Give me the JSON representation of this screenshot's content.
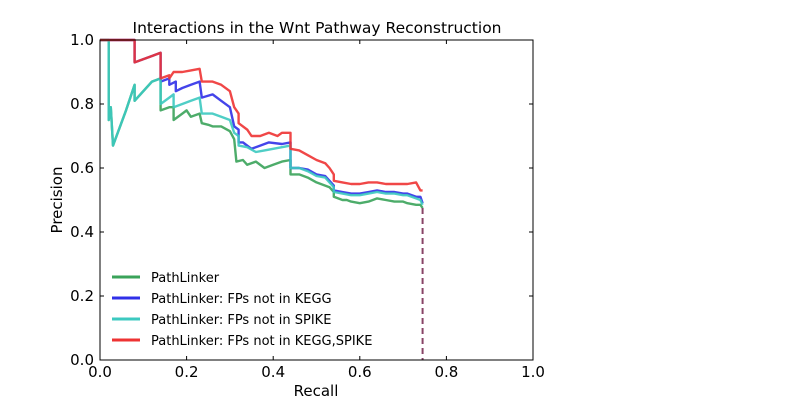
{
  "chart_data": {
    "type": "line",
    "title": "Interactions in the Wnt Pathway Reconstruction",
    "xlabel": "Recall",
    "ylabel": "Precision",
    "xlim": [
      0.0,
      1.0
    ],
    "ylim": [
      0.0,
      1.0
    ],
    "xticks": [
      "0.0",
      "0.2",
      "0.4",
      "0.6",
      "0.8",
      "1.0"
    ],
    "yticks": [
      "0.0",
      "0.2",
      "0.4",
      "0.6",
      "0.8",
      "1.0"
    ],
    "grid": false,
    "legend_position": "lower-left",
    "series": [
      {
        "name": "PathLinker",
        "color": "#3aa35a",
        "points": [
          [
            0.0,
            1.0
          ],
          [
            0.02,
            1.0
          ],
          [
            0.02,
            0.75
          ],
          [
            0.025,
            0.79
          ],
          [
            0.03,
            0.67
          ],
          [
            0.06,
            0.78
          ],
          [
            0.07,
            0.82
          ],
          [
            0.08,
            0.86
          ],
          [
            0.08,
            0.81
          ],
          [
            0.12,
            0.87
          ],
          [
            0.14,
            0.88
          ],
          [
            0.14,
            0.78
          ],
          [
            0.16,
            0.79
          ],
          [
            0.17,
            0.79
          ],
          [
            0.17,
            0.75
          ],
          [
            0.19,
            0.77
          ],
          [
            0.2,
            0.78
          ],
          [
            0.21,
            0.76
          ],
          [
            0.23,
            0.77
          ],
          [
            0.235,
            0.74
          ],
          [
            0.25,
            0.735
          ],
          [
            0.26,
            0.73
          ],
          [
            0.28,
            0.73
          ],
          [
            0.3,
            0.715
          ],
          [
            0.31,
            0.69
          ],
          [
            0.315,
            0.62
          ],
          [
            0.33,
            0.625
          ],
          [
            0.34,
            0.61
          ],
          [
            0.36,
            0.62
          ],
          [
            0.38,
            0.6
          ],
          [
            0.4,
            0.61
          ],
          [
            0.42,
            0.62
          ],
          [
            0.44,
            0.625
          ],
          [
            0.44,
            0.58
          ],
          [
            0.46,
            0.58
          ],
          [
            0.48,
            0.57
          ],
          [
            0.5,
            0.555
          ],
          [
            0.52,
            0.545
          ],
          [
            0.53,
            0.54
          ],
          [
            0.54,
            0.525
          ],
          [
            0.54,
            0.51
          ],
          [
            0.56,
            0.5
          ],
          [
            0.57,
            0.5
          ],
          [
            0.58,
            0.495
          ],
          [
            0.6,
            0.49
          ],
          [
            0.62,
            0.495
          ],
          [
            0.64,
            0.505
          ],
          [
            0.66,
            0.5
          ],
          [
            0.68,
            0.495
          ],
          [
            0.7,
            0.495
          ],
          [
            0.71,
            0.49
          ],
          [
            0.73,
            0.485
          ],
          [
            0.74,
            0.485
          ],
          [
            0.745,
            0.475
          ]
        ]
      },
      {
        "name": "PathLinker: FPs not in KEGG",
        "color": "#3030e8",
        "points": [
          [
            0.0,
            1.0
          ],
          [
            0.08,
            1.0
          ],
          [
            0.08,
            0.93
          ],
          [
            0.12,
            0.95
          ],
          [
            0.14,
            0.96
          ],
          [
            0.14,
            0.87
          ],
          [
            0.16,
            0.88
          ],
          [
            0.16,
            0.86
          ],
          [
            0.175,
            0.87
          ],
          [
            0.175,
            0.84
          ],
          [
            0.19,
            0.85
          ],
          [
            0.21,
            0.86
          ],
          [
            0.23,
            0.87
          ],
          [
            0.235,
            0.82
          ],
          [
            0.26,
            0.83
          ],
          [
            0.28,
            0.81
          ],
          [
            0.3,
            0.79
          ],
          [
            0.31,
            0.73
          ],
          [
            0.32,
            0.72
          ],
          [
            0.32,
            0.68
          ],
          [
            0.33,
            0.68
          ],
          [
            0.34,
            0.67
          ],
          [
            0.35,
            0.66
          ],
          [
            0.37,
            0.67
          ],
          [
            0.39,
            0.68
          ],
          [
            0.42,
            0.675
          ],
          [
            0.44,
            0.68
          ],
          [
            0.44,
            0.6
          ],
          [
            0.46,
            0.6
          ],
          [
            0.48,
            0.595
          ],
          [
            0.5,
            0.58
          ],
          [
            0.52,
            0.575
          ],
          [
            0.53,
            0.56
          ],
          [
            0.54,
            0.545
          ],
          [
            0.54,
            0.53
          ],
          [
            0.56,
            0.525
          ],
          [
            0.58,
            0.52
          ],
          [
            0.6,
            0.52
          ],
          [
            0.62,
            0.525
          ],
          [
            0.64,
            0.53
          ],
          [
            0.66,
            0.525
          ],
          [
            0.68,
            0.525
          ],
          [
            0.7,
            0.52
          ],
          [
            0.71,
            0.52
          ],
          [
            0.73,
            0.51
          ],
          [
            0.74,
            0.51
          ],
          [
            0.745,
            0.49
          ]
        ]
      },
      {
        "name": "PathLinker: FPs not in SPIKE",
        "color": "#3cc9c0",
        "points": [
          [
            0.0,
            1.0
          ],
          [
            0.02,
            1.0
          ],
          [
            0.02,
            0.75
          ],
          [
            0.025,
            0.79
          ],
          [
            0.03,
            0.67
          ],
          [
            0.06,
            0.78
          ],
          [
            0.07,
            0.82
          ],
          [
            0.08,
            0.86
          ],
          [
            0.08,
            0.81
          ],
          [
            0.12,
            0.87
          ],
          [
            0.14,
            0.88
          ],
          [
            0.14,
            0.8
          ],
          [
            0.16,
            0.82
          ],
          [
            0.17,
            0.83
          ],
          [
            0.17,
            0.79
          ],
          [
            0.19,
            0.8
          ],
          [
            0.21,
            0.81
          ],
          [
            0.23,
            0.82
          ],
          [
            0.235,
            0.77
          ],
          [
            0.26,
            0.77
          ],
          [
            0.28,
            0.76
          ],
          [
            0.3,
            0.75
          ],
          [
            0.31,
            0.71
          ],
          [
            0.32,
            0.7
          ],
          [
            0.32,
            0.67
          ],
          [
            0.34,
            0.665
          ],
          [
            0.36,
            0.65
          ],
          [
            0.38,
            0.655
          ],
          [
            0.4,
            0.66
          ],
          [
            0.42,
            0.665
          ],
          [
            0.44,
            0.67
          ],
          [
            0.44,
            0.6
          ],
          [
            0.46,
            0.6
          ],
          [
            0.48,
            0.59
          ],
          [
            0.5,
            0.575
          ],
          [
            0.52,
            0.57
          ],
          [
            0.53,
            0.555
          ],
          [
            0.54,
            0.54
          ],
          [
            0.54,
            0.525
          ],
          [
            0.56,
            0.52
          ],
          [
            0.58,
            0.515
          ],
          [
            0.6,
            0.515
          ],
          [
            0.62,
            0.52
          ],
          [
            0.64,
            0.525
          ],
          [
            0.66,
            0.52
          ],
          [
            0.68,
            0.52
          ],
          [
            0.7,
            0.515
          ],
          [
            0.71,
            0.515
          ],
          [
            0.73,
            0.505
          ],
          [
            0.74,
            0.5
          ],
          [
            0.745,
            0.485
          ]
        ]
      },
      {
        "name": "PathLinker: FPs not in KEGG,SPIKE",
        "color": "#ee3333",
        "points": [
          [
            0.0,
            1.0
          ],
          [
            0.08,
            1.0
          ],
          [
            0.08,
            0.93
          ],
          [
            0.12,
            0.95
          ],
          [
            0.14,
            0.96
          ],
          [
            0.14,
            0.88
          ],
          [
            0.16,
            0.89
          ],
          [
            0.16,
            0.88
          ],
          [
            0.17,
            0.9
          ],
          [
            0.19,
            0.9
          ],
          [
            0.21,
            0.905
          ],
          [
            0.23,
            0.91
          ],
          [
            0.235,
            0.87
          ],
          [
            0.26,
            0.87
          ],
          [
            0.28,
            0.86
          ],
          [
            0.3,
            0.84
          ],
          [
            0.31,
            0.79
          ],
          [
            0.32,
            0.77
          ],
          [
            0.32,
            0.74
          ],
          [
            0.34,
            0.72
          ],
          [
            0.35,
            0.7
          ],
          [
            0.37,
            0.7
          ],
          [
            0.39,
            0.71
          ],
          [
            0.41,
            0.7
          ],
          [
            0.42,
            0.71
          ],
          [
            0.44,
            0.71
          ],
          [
            0.44,
            0.66
          ],
          [
            0.46,
            0.655
          ],
          [
            0.48,
            0.64
          ],
          [
            0.5,
            0.625
          ],
          [
            0.52,
            0.615
          ],
          [
            0.53,
            0.6
          ],
          [
            0.54,
            0.58
          ],
          [
            0.54,
            0.56
          ],
          [
            0.56,
            0.555
          ],
          [
            0.58,
            0.55
          ],
          [
            0.6,
            0.55
          ],
          [
            0.62,
            0.555
          ],
          [
            0.64,
            0.555
          ],
          [
            0.66,
            0.55
          ],
          [
            0.68,
            0.55
          ],
          [
            0.7,
            0.55
          ],
          [
            0.71,
            0.55
          ],
          [
            0.73,
            0.555
          ],
          [
            0.74,
            0.53
          ],
          [
            0.745,
            0.53
          ]
        ]
      }
    ],
    "cutoff_line": {
      "x": 0.745,
      "color": "#884466"
    }
  }
}
